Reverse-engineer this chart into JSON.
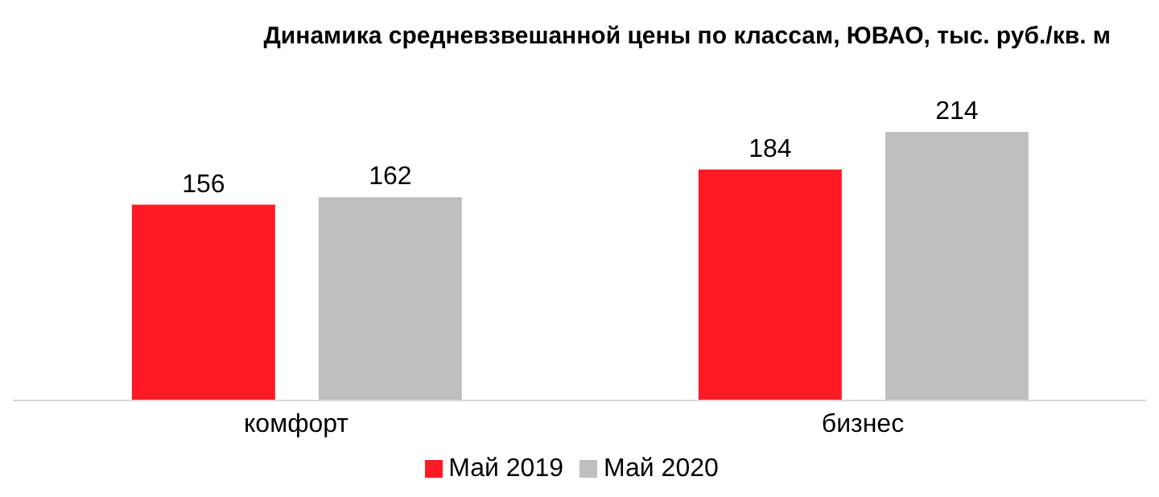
{
  "chart_data": {
    "type": "bar",
    "title": "Динамика средневзвешанной цены по классам, ЮВАО, тыс. руб./кв. м",
    "categories": [
      "комфорт",
      "бизнес"
    ],
    "series": [
      {
        "name": "Май 2019",
        "color": "#ff1a25",
        "values": [
          156,
          184
        ]
      },
      {
        "name": "Май 2020",
        "color": "#bfbfbf",
        "values": [
          162,
          214
        ]
      }
    ],
    "data_labels": true,
    "legend": "bottom",
    "grid": false
  }
}
